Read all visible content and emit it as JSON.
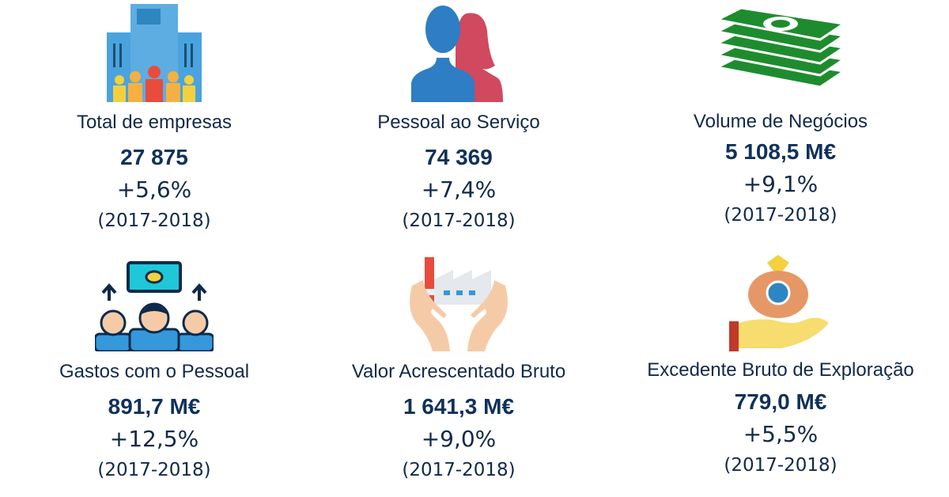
{
  "cards": [
    {
      "label": "Total de empresas",
      "value": "27 875",
      "change": "+5,6%",
      "period": "(2017-2018)"
    },
    {
      "label": "Pessoal ao Serviço",
      "value": "74 369",
      "change": "+7,4%",
      "period": "(2017-2018)"
    },
    {
      "label": "Volume de Negócios",
      "value": "5 108,5 M€",
      "change": "+9,1%",
      "period": "(2017-2018)"
    },
    {
      "label": "Gastos com o Pessoal",
      "value": "891,7 M€",
      "change": "+12,5%",
      "period": "(2017-2018)"
    },
    {
      "label": "Valor Acrescentado Bruto",
      "value": "1 641,3 M€",
      "change": "+9,0%",
      "period": "(2017-2018)"
    },
    {
      "label": "Excedente Bruto de Exploração",
      "value": "779,0 M€",
      "change": "+5,5%",
      "period": "(2017-2018)"
    }
  ]
}
